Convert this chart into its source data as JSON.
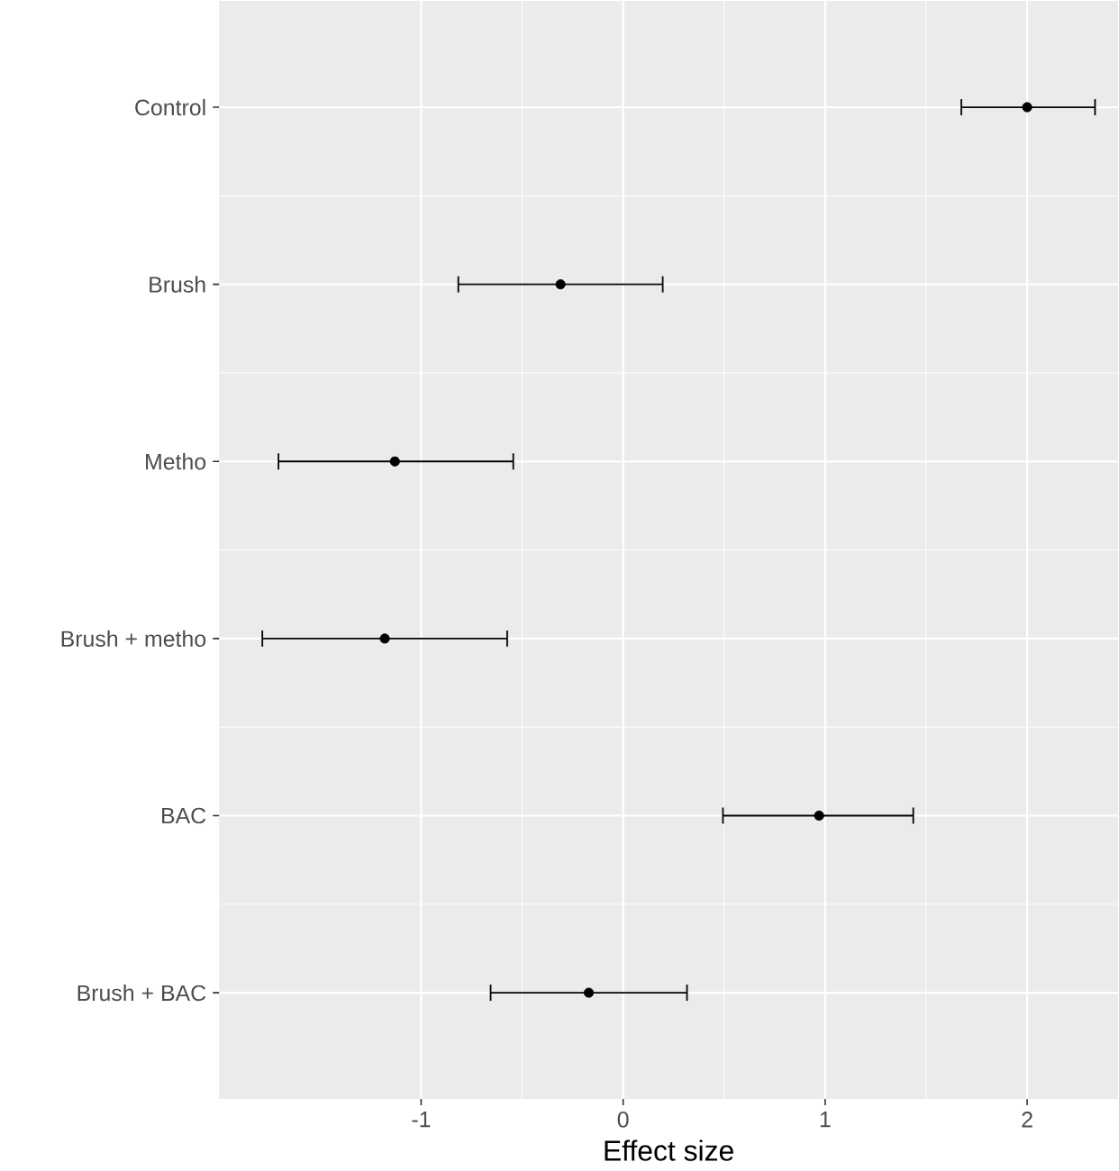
{
  "chart_data": {
    "type": "scatter",
    "orientation": "horizontal",
    "xlabel": "Effect size",
    "categories": [
      "Control",
      "Brush",
      "Metho",
      "Brush + metho",
      "BAC",
      "Brush + BAC"
    ],
    "values": [
      2.0,
      -0.31,
      -1.13,
      -1.18,
      0.97,
      -0.17
    ],
    "errors": [
      [
        1.67,
        2.34
      ],
      [
        -0.82,
        0.2
      ],
      [
        -1.71,
        -0.54
      ],
      [
        -1.79,
        -0.57
      ],
      [
        0.49,
        1.44
      ],
      [
        -0.66,
        0.32
      ]
    ],
    "color": "#000000",
    "grid": true,
    "xlim": [
      -2.0,
      2.45
    ],
    "xticks": [
      -1,
      0,
      1,
      2
    ]
  }
}
